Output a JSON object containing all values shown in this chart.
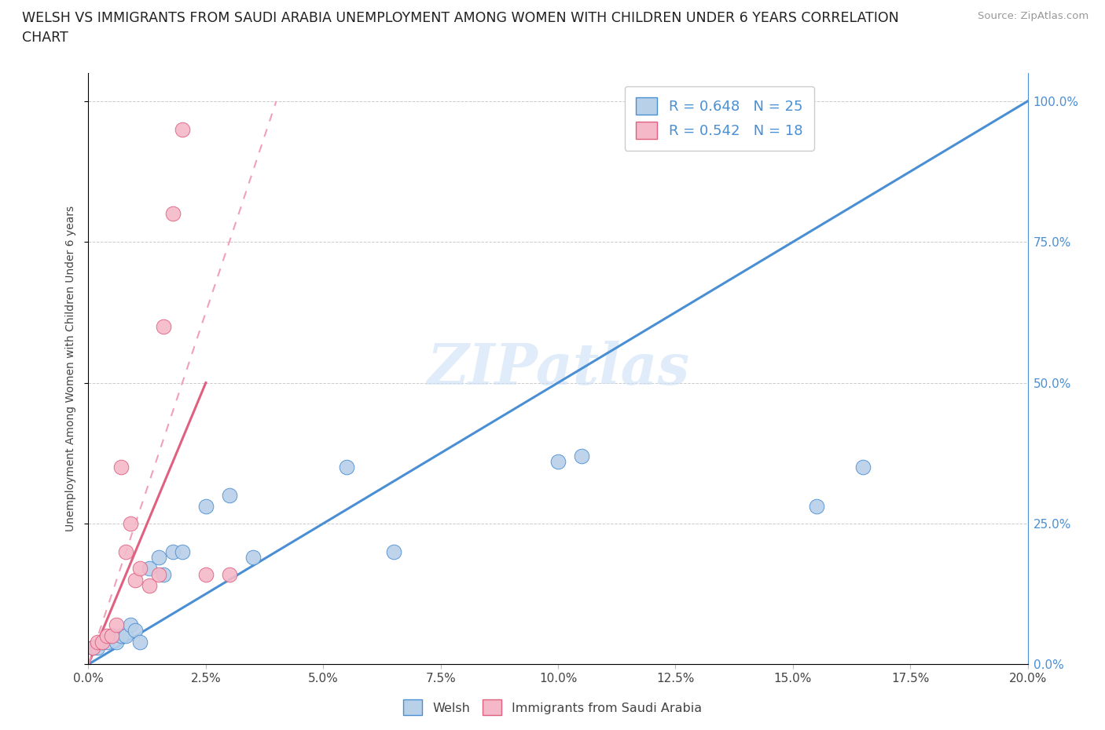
{
  "title_line1": "WELSH VS IMMIGRANTS FROM SAUDI ARABIA UNEMPLOYMENT AMONG WOMEN WITH CHILDREN UNDER 6 YEARS CORRELATION",
  "title_line2": "CHART",
  "source": "Source: ZipAtlas.com",
  "ylabel": "Unemployment Among Women with Children Under 6 years",
  "xlabel_ticks": [
    "0.0%",
    "2.5%",
    "5.0%",
    "7.5%",
    "10.0%",
    "12.5%",
    "15.0%",
    "17.5%",
    "20.0%"
  ],
  "ylabel_ticks": [
    "0.0%",
    "25.0%",
    "50.0%",
    "75.0%",
    "100.0%"
  ],
  "xlim": [
    0,
    0.2
  ],
  "ylim": [
    0,
    1.05
  ],
  "welsh_color": "#b8d0e8",
  "saudi_color": "#f5b8c8",
  "welsh_line_color": "#4a8fd4",
  "saudi_line_color": "#e06080",
  "saudi_dash_color": "#f0a0b8",
  "welsh_R": 0.648,
  "welsh_N": 25,
  "saudi_R": 0.542,
  "saudi_N": 18,
  "legend_label_welsh": "Welsh",
  "legend_label_saudi": "Immigrants from Saudi Arabia",
  "watermark": "ZIPatlas",
  "welsh_scatter_x": [
    0.001,
    0.002,
    0.003,
    0.004,
    0.005,
    0.006,
    0.007,
    0.008,
    0.009,
    0.01,
    0.011,
    0.013,
    0.015,
    0.016,
    0.018,
    0.02,
    0.025,
    0.03,
    0.035,
    0.055,
    0.065,
    0.1,
    0.105,
    0.155,
    0.165
  ],
  "welsh_scatter_y": [
    0.03,
    0.03,
    0.04,
    0.04,
    0.05,
    0.04,
    0.05,
    0.05,
    0.07,
    0.06,
    0.04,
    0.17,
    0.19,
    0.16,
    0.2,
    0.2,
    0.28,
    0.3,
    0.19,
    0.35,
    0.2,
    0.36,
    0.37,
    0.28,
    0.35
  ],
  "saudi_scatter_x": [
    0.001,
    0.002,
    0.003,
    0.004,
    0.005,
    0.006,
    0.007,
    0.008,
    0.009,
    0.01,
    0.011,
    0.013,
    0.015,
    0.016,
    0.018,
    0.02,
    0.025,
    0.03
  ],
  "saudi_scatter_y": [
    0.03,
    0.04,
    0.04,
    0.05,
    0.05,
    0.07,
    0.35,
    0.2,
    0.25,
    0.15,
    0.17,
    0.14,
    0.16,
    0.6,
    0.8,
    0.95,
    0.16,
    0.16
  ],
  "bubble_size_welsh": 180,
  "bubble_size_saudi": 180,
  "welsh_line_x": [
    0.0,
    0.2
  ],
  "welsh_line_y": [
    0.0,
    1.0
  ],
  "saudi_solid_line_x": [
    0.0,
    0.025
  ],
  "saudi_solid_line_y": [
    0.0,
    0.5
  ],
  "saudi_dash_line_x": [
    0.0,
    0.04
  ],
  "saudi_dash_line_y": [
    0.0,
    1.0
  ]
}
